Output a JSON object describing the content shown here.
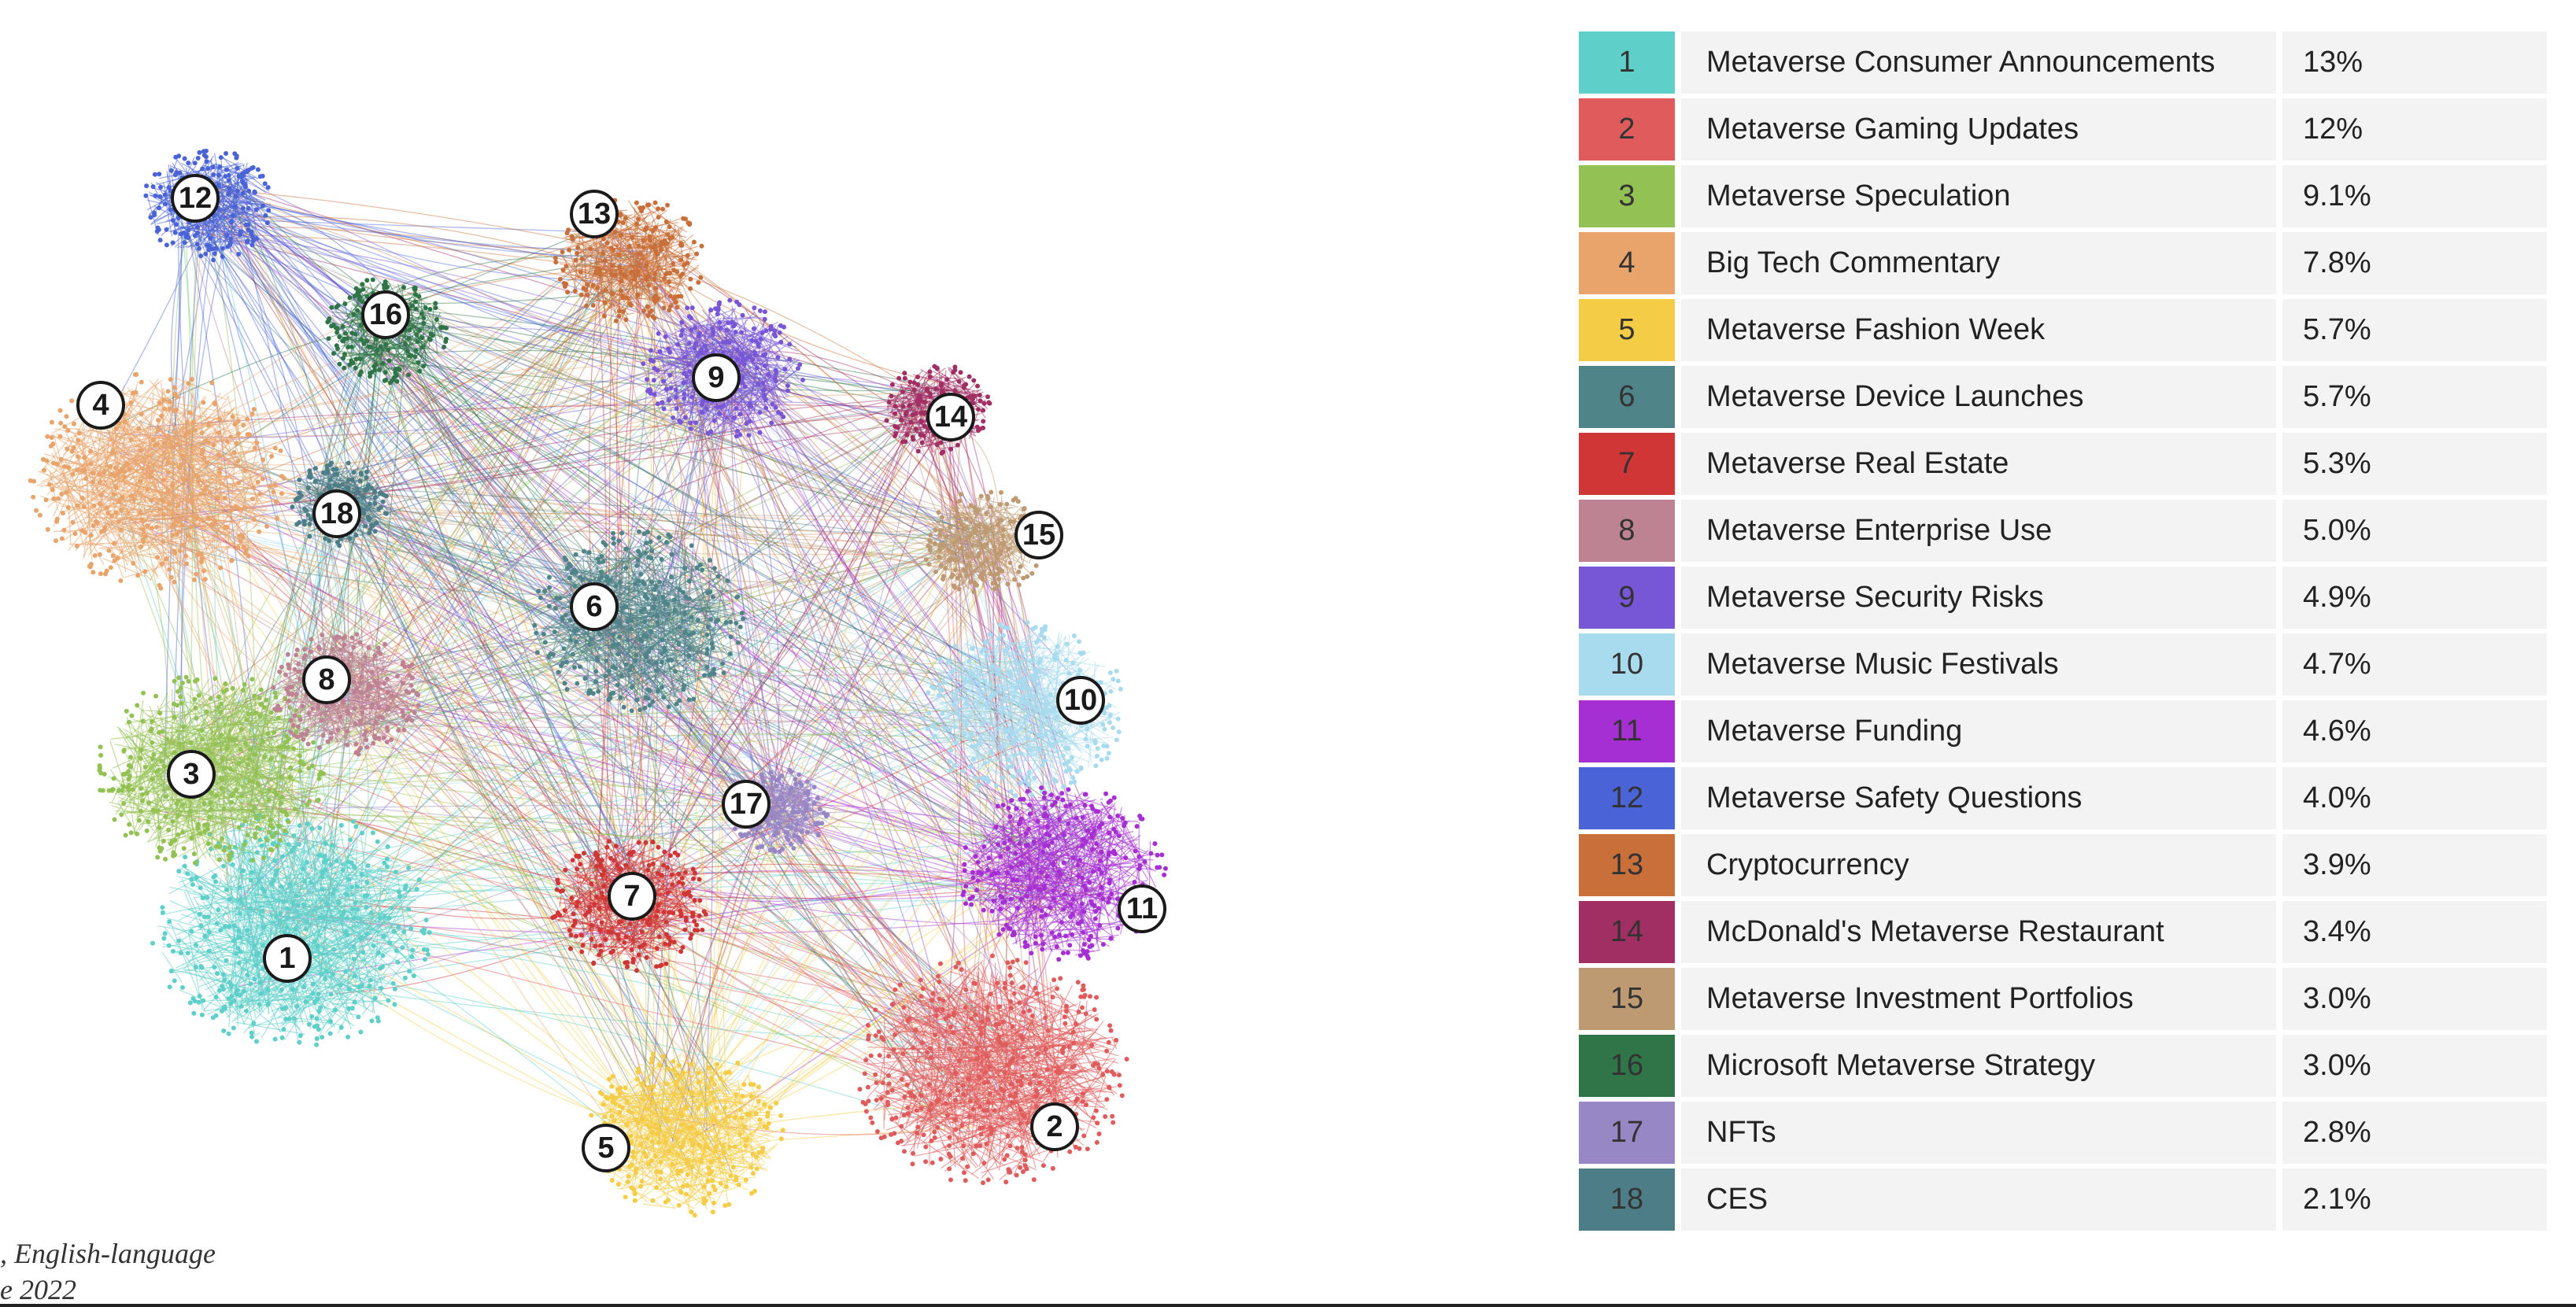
{
  "caption": {
    "line1": ", English-language",
    "line2": "e 2022"
  },
  "clusters": [
    {
      "id": "1",
      "label": "Metaverse Consumer Announcements",
      "share": "13%",
      "color": "#5ecfc9"
    },
    {
      "id": "2",
      "label": "Metaverse Gaming Updates",
      "share": "12%",
      "color": "#e05c5c"
    },
    {
      "id": "3",
      "label": "Metaverse Speculation",
      "share": "9.1%",
      "color": "#94c153"
    },
    {
      "id": "4",
      "label": "Big Tech Commentary",
      "share": "7.8%",
      "color": "#e8a46b"
    },
    {
      "id": "5",
      "label": "Metaverse Fashion Week",
      "share": "5.7%",
      "color": "#f5cc45"
    },
    {
      "id": "6",
      "label": "Metaverse Device Launches",
      "share": "5.7%",
      "color": "#4f8488"
    },
    {
      "id": "7",
      "label": "Metaverse Real Estate",
      "share": "5.3%",
      "color": "#d13636"
    },
    {
      "id": "8",
      "label": "Metaverse Enterprise Use",
      "share": "5.0%",
      "color": "#bd8393"
    },
    {
      "id": "9",
      "label": "Metaverse Security Risks",
      "share": "4.9%",
      "color": "#7857d6"
    },
    {
      "id": "10",
      "label": "Metaverse Music Festivals",
      "share": "4.7%",
      "color": "#a9dbee"
    },
    {
      "id": "11",
      "label": "Metaverse Funding",
      "share": "4.6%",
      "color": "#a52fd3"
    },
    {
      "id": "12",
      "label": "Metaverse Safety Questions",
      "share": "4.0%",
      "color": "#4a63d6"
    },
    {
      "id": "13",
      "label": "Cryptocurrency",
      "share": "3.9%",
      "color": "#c9703a"
    },
    {
      "id": "14",
      "label": "McDonald's Metaverse Restaurant",
      "share": "3.4%",
      "color": "#a12f63"
    },
    {
      "id": "15",
      "label": "Metaverse Investment Portfolios",
      "share": "3.0%",
      "color": "#bd9a72"
    },
    {
      "id": "16",
      "label": "Microsoft Metaverse Strategy",
      "share": "3.0%",
      "color": "#2f7547"
    },
    {
      "id": "17",
      "label": "NFTs",
      "share": "2.8%",
      "color": "#9787c4"
    },
    {
      "id": "18",
      "label": "CES",
      "share": "2.1%",
      "color": "#4d7e88"
    }
  ]
}
